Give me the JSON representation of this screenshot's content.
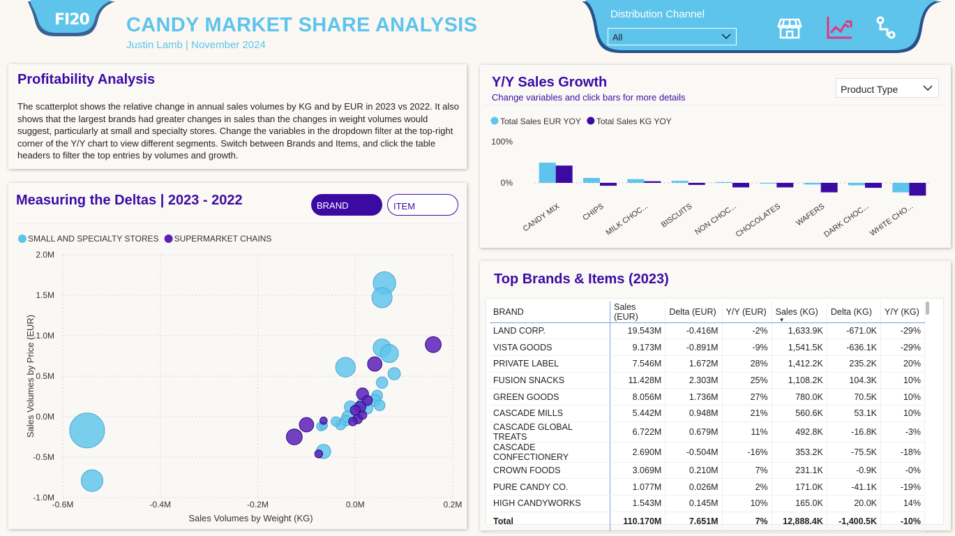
{
  "header": {
    "logo": "FI20",
    "title": "CANDY MARKET SHARE ANALYSIS",
    "subtitle": "Justin Lamb | November 2024",
    "distribution_label": "Distribution Channel",
    "distribution_value": "All",
    "icons": [
      "store-icon",
      "trend-chart-icon",
      "workflow-icon"
    ],
    "colors": {
      "accent": "#5ec4ec",
      "purple": "#3b0aa3",
      "pink": "#e0357e"
    }
  },
  "profitability": {
    "title": "Profitability Analysis",
    "text": "The scatterplot shows the relative change in annual sales volumes by KG and by EUR in 2023 vs 2022. It also shows that the largest brands had greater changes in sales than the changes in weight volumes would suggest, particularly at small and specialty stores. Change the variables in the dropdown filter at the top-right corner of the Y/Y chart to view different segments. Switch between Brands and Items, and click the table headers to filter the top entries by volumes and growth."
  },
  "deltas": {
    "title": "Measuring the Deltas  |  2023 - 2022",
    "toggle_active": "BRAND",
    "toggle_inactive": "ITEM"
  },
  "yoy": {
    "title": "Y/Y Sales Growth",
    "subtitle": "Change variables and click bars for more details",
    "dropdown": "Product Type"
  },
  "top": {
    "title": "Top Brands & Items (2023)",
    "columns": [
      "BRAND",
      "Sales (EUR)",
      "Delta (EUR)",
      "Y/Y (EUR)",
      "Sales (KG)",
      "Delta (KG)",
      "Y/Y (KG)"
    ],
    "rows": [
      [
        "LAND CORP.",
        "19.543M",
        "-0.416M",
        "-2%",
        "1,633.9K",
        "-671.0K",
        "-29%"
      ],
      [
        "VISTA GOODS",
        "9.173M",
        "-0.891M",
        "-9%",
        "1,541.5K",
        "-636.1K",
        "-29%"
      ],
      [
        "PRIVATE LABEL",
        "7.546M",
        "1.672M",
        "28%",
        "1,412.2K",
        "235.2K",
        "20%"
      ],
      [
        "FUSION SNACKS",
        "11.428M",
        "2.303M",
        "25%",
        "1,108.2K",
        "104.3K",
        "10%"
      ],
      [
        "GREEN GOODS",
        "8.056M",
        "1.736M",
        "27%",
        "780.0K",
        "70.5K",
        "10%"
      ],
      [
        "CASCADE MILLS",
        "5.442M",
        "0.948M",
        "21%",
        "560.6K",
        "53.1K",
        "10%"
      ],
      [
        "CASCADE GLOBAL TREATS",
        "6.722M",
        "0.679M",
        "11%",
        "492.8K",
        "-16.8K",
        "-3%"
      ],
      [
        "CASCADE CONFECTIONERY",
        "2.690M",
        "-0.504M",
        "-16%",
        "353.2K",
        "-75.5K",
        "-18%"
      ],
      [
        "CROWN FOODS",
        "3.069M",
        "0.210M",
        "7%",
        "231.1K",
        "-0.9K",
        "-0%"
      ],
      [
        "PURE CANDY CO.",
        "1.077M",
        "0.026M",
        "2%",
        "171.0K",
        "-41.1K",
        "-19%"
      ],
      [
        "HIGH CANDYWORKS",
        "1.543M",
        "0.145M",
        "10%",
        "165.0K",
        "20.0K",
        "14%"
      ]
    ],
    "total": [
      "Total",
      "110.170M",
      "7.651M",
      "7%",
      "12,888.4K",
      "-1,400.5K",
      "-10%"
    ]
  },
  "chart_data": [
    {
      "type": "scatter",
      "title": "",
      "xlabel": "Sales Volumes by Weight (KG)",
      "ylabel": "Sales Volumes by Price (EUR)",
      "xlim": [
        -0.6,
        0.2
      ],
      "ylim": [
        -1.0,
        2.0
      ],
      "x_ticks": [
        "-0.6M",
        "-0.4M",
        "-0.2M",
        "0.0M",
        "0.2M"
      ],
      "y_ticks": [
        "-1.0M",
        "-0.5M",
        "0.0M",
        "0.5M",
        "1.0M",
        "1.5M",
        "2.0M"
      ],
      "legend_position": "top-left",
      "series": [
        {
          "name": "SMALL AND SPECIALTY STORES",
          "color": "#5ec4ec",
          "points": [
            {
              "x": -0.55,
              "y": -0.17,
              "size": 1.0
            },
            {
              "x": -0.54,
              "y": -0.79,
              "size": 0.55
            },
            {
              "x": 0.06,
              "y": 1.65,
              "size": 0.58
            },
            {
              "x": 0.055,
              "y": 1.47,
              "size": 0.5
            },
            {
              "x": -0.02,
              "y": 0.61,
              "size": 0.48
            },
            {
              "x": 0.055,
              "y": 0.85,
              "size": 0.42
            },
            {
              "x": 0.07,
              "y": 0.78,
              "size": 0.43
            },
            {
              "x": 0.08,
              "y": 0.53,
              "size": 0.23
            },
            {
              "x": 0.055,
              "y": 0.42,
              "size": 0.2
            },
            {
              "x": 0.045,
              "y": 0.26,
              "size": 0.18
            },
            {
              "x": 0.04,
              "y": 0.2,
              "size": 0.22
            },
            {
              "x": 0.05,
              "y": 0.14,
              "size": 0.18
            },
            {
              "x": 0.015,
              "y": 0.16,
              "size": 0.2
            },
            {
              "x": -0.01,
              "y": 0.12,
              "size": 0.22
            },
            {
              "x": 0.005,
              "y": 0.06,
              "size": 0.23
            },
            {
              "x": -0.015,
              "y": 0.0,
              "size": 0.22
            },
            {
              "x": -0.02,
              "y": -0.05,
              "size": 0.18
            },
            {
              "x": -0.03,
              "y": -0.1,
              "size": 0.16
            },
            {
              "x": -0.04,
              "y": -0.06,
              "size": 0.13
            },
            {
              "x": -0.065,
              "y": -0.43,
              "size": 0.3
            },
            {
              "x": -0.07,
              "y": -0.12,
              "size": 0.12
            },
            {
              "x": -0.065,
              "y": -0.11,
              "size": 0.08
            },
            {
              "x": 0.025,
              "y": 0.1,
              "size": 0.18
            }
          ]
        },
        {
          "name": "SUPERMARKET CHAINS",
          "color": "#5a20b8",
          "points": [
            {
              "x": 0.16,
              "y": 0.89,
              "size": 0.35
            },
            {
              "x": 0.04,
              "y": 0.65,
              "size": 0.3
            },
            {
              "x": 0.015,
              "y": 0.28,
              "size": 0.22
            },
            {
              "x": 0.025,
              "y": 0.2,
              "size": 0.15
            },
            {
              "x": 0.01,
              "y": 0.12,
              "size": 0.2
            },
            {
              "x": 0.0,
              "y": 0.08,
              "size": 0.15
            },
            {
              "x": 0.005,
              "y": -0.03,
              "size": 0.13
            },
            {
              "x": -0.005,
              "y": -0.06,
              "size": 0.1
            },
            {
              "x": -0.1,
              "y": -0.1,
              "size": 0.3
            },
            {
              "x": -0.125,
              "y": -0.25,
              "size": 0.35
            },
            {
              "x": -0.075,
              "y": -0.46,
              "size": 0.08
            },
            {
              "x": -0.065,
              "y": -0.05,
              "size": 0.06
            },
            {
              "x": 0.015,
              "y": 0.02,
              "size": 0.1
            }
          ]
        }
      ]
    },
    {
      "type": "bar",
      "title": "",
      "categories": [
        "CANDY MIX",
        "CHIPS",
        "MILK CHOC...",
        "BISCUITS",
        "NON CHOC...",
        "CHOCOLATES",
        "WAFERS",
        "DARK CHOC...",
        "WHITE CHO..."
      ],
      "y_ticks": [
        "100%",
        "0%"
      ],
      "ylim": [
        -60,
        100
      ],
      "legend_position": "top-left",
      "series": [
        {
          "name": "Total Sales EUR YOY",
          "color": "#5ec4ec",
          "values": [
            49,
            12,
            9,
            5,
            2,
            -2,
            -4,
            -6,
            -23
          ]
        },
        {
          "name": "Total Sales KG YOY",
          "color": "#3b0aa3",
          "values": [
            42,
            -7,
            4,
            -5,
            -11,
            -11,
            -23,
            -12,
            -31
          ]
        }
      ]
    }
  ]
}
